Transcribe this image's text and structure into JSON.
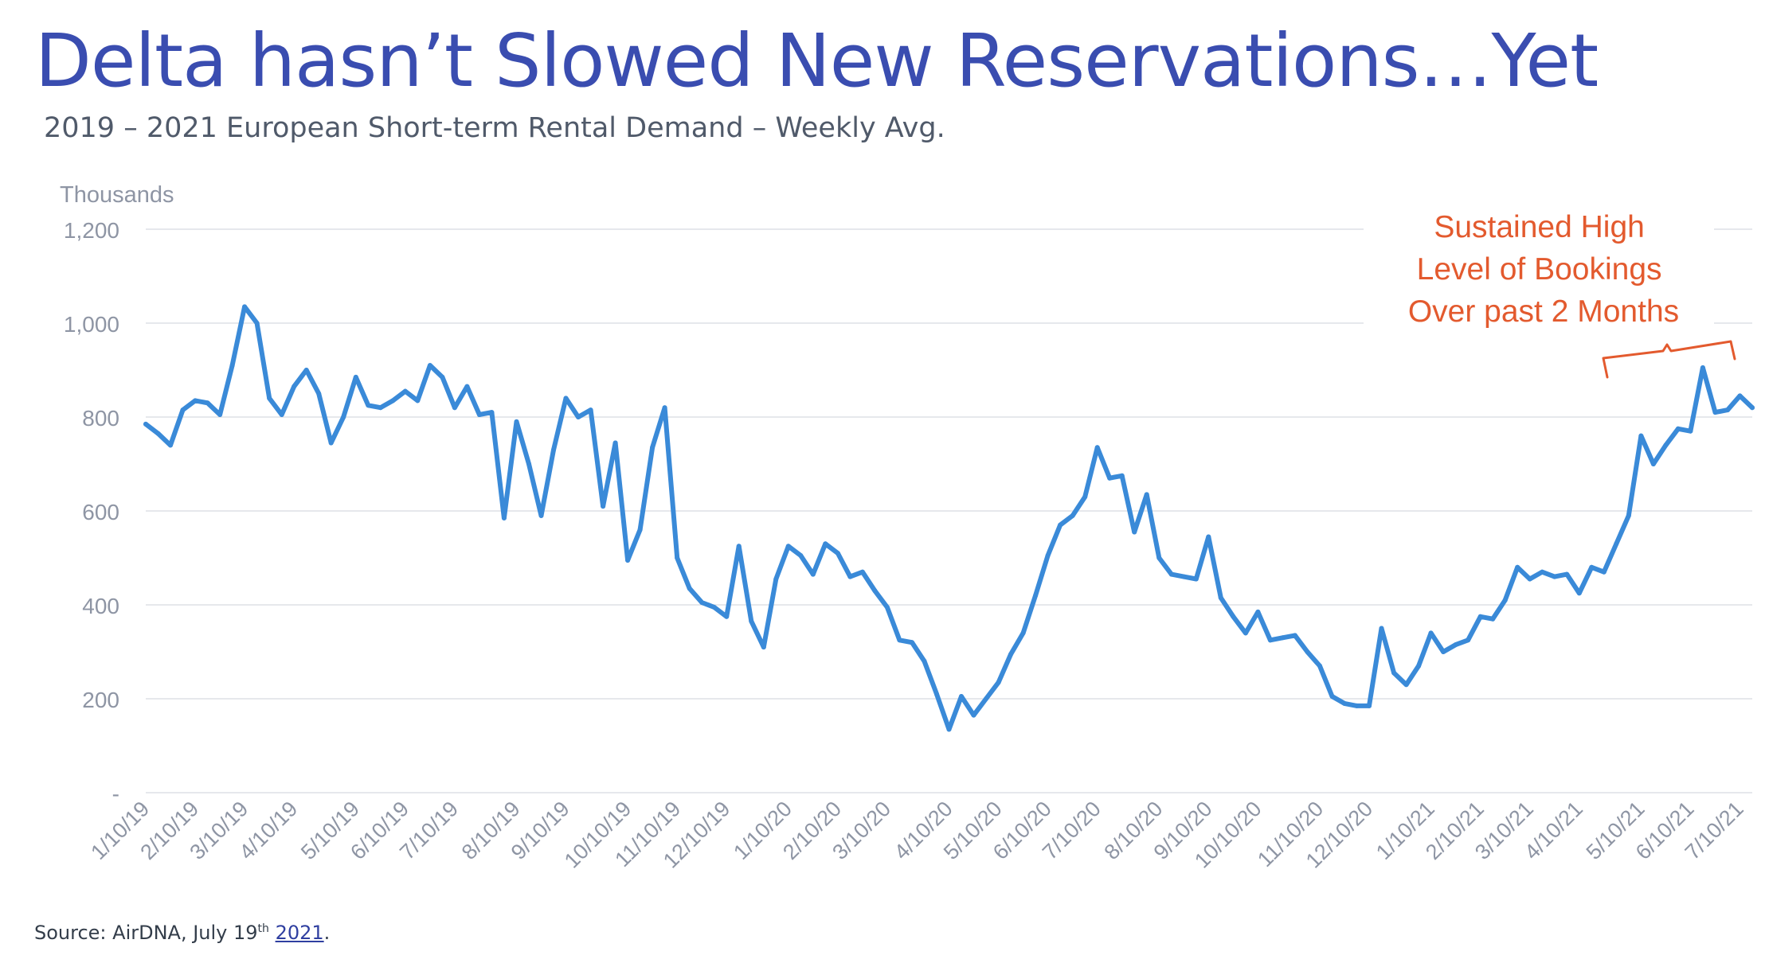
{
  "title": "Delta hasn’t Slowed New Reservations…Yet",
  "subtitle": "2019 – 2021 European Short-term Rental Demand – Weekly Avg.",
  "source": {
    "prefix": "Source: AirDNA, July 19",
    "sup": "th",
    "year": "2021",
    "suffix": "."
  },
  "colors": {
    "title": "#3a4db0",
    "line": "#3a8ad8",
    "annotation": "#e35a2e",
    "axis_text": "#8e95a4",
    "grid": "#e6e8ec"
  },
  "chart_data": {
    "type": "line",
    "title": "2019 – 2021 European Short-term Rental Demand – Weekly Avg.",
    "ylabel": "Thousands",
    "xlabel": "",
    "ylim": [
      0,
      1200
    ],
    "yticks": [
      {
        "value": 0,
        "label": "-"
      },
      {
        "value": 200,
        "label": "200"
      },
      {
        "value": 400,
        "label": "400"
      },
      {
        "value": 600,
        "label": "600"
      },
      {
        "value": 800,
        "label": "800"
      },
      {
        "value": 1000,
        "label": "1,000"
      },
      {
        "value": 1200,
        "label": "1,200"
      }
    ],
    "grid": true,
    "x_start": "1/10/19",
    "x_step_days": 7,
    "xticks": [
      {
        "index": 0,
        "label": "1/10/19"
      },
      {
        "index": 4,
        "label": "2/10/19"
      },
      {
        "index": 8,
        "label": "3/10/19"
      },
      {
        "index": 12,
        "label": "4/10/19"
      },
      {
        "index": 17,
        "label": "5/10/19"
      },
      {
        "index": 21,
        "label": "6/10/19"
      },
      {
        "index": 25,
        "label": "7/10/19"
      },
      {
        "index": 30,
        "label": "8/10/19"
      },
      {
        "index": 34,
        "label": "9/10/19"
      },
      {
        "index": 39,
        "label": "10/10/19"
      },
      {
        "index": 43,
        "label": "11/10/19"
      },
      {
        "index": 47,
        "label": "12/10/19"
      },
      {
        "index": 52,
        "label": "1/10/20"
      },
      {
        "index": 56,
        "label": "2/10/20"
      },
      {
        "index": 60,
        "label": "3/10/20"
      },
      {
        "index": 65,
        "label": "4/10/20"
      },
      {
        "index": 69,
        "label": "5/10/20"
      },
      {
        "index": 73,
        "label": "6/10/20"
      },
      {
        "index": 77,
        "label": "7/10/20"
      },
      {
        "index": 82,
        "label": "8/10/20"
      },
      {
        "index": 86,
        "label": "9/10/20"
      },
      {
        "index": 90,
        "label": "10/10/20"
      },
      {
        "index": 95,
        "label": "11/10/20"
      },
      {
        "index": 99,
        "label": "12/10/20"
      },
      {
        "index": 104,
        "label": "1/10/21"
      },
      {
        "index": 108,
        "label": "2/10/21"
      },
      {
        "index": 112,
        "label": "3/10/21"
      },
      {
        "index": 116,
        "label": "4/10/21"
      },
      {
        "index": 121,
        "label": "5/10/21"
      },
      {
        "index": 125,
        "label": "6/10/21"
      },
      {
        "index": 129,
        "label": "7/10/21"
      }
    ],
    "series": [
      {
        "values": [
          785,
          765,
          740,
          815,
          835,
          830,
          805,
          910,
          1035,
          1000,
          840,
          805,
          865,
          900,
          850,
          745,
          800,
          885,
          825,
          820,
          835,
          855,
          835,
          910,
          885,
          820,
          865,
          805,
          810,
          585,
          790,
          700,
          590,
          730,
          840,
          800,
          815,
          610,
          745,
          495,
          560,
          735,
          820,
          500,
          435,
          405,
          395,
          375,
          525,
          365,
          310,
          455,
          525,
          505,
          465,
          530,
          510,
          460,
          470,
          430,
          395,
          325,
          320,
          280,
          210,
          135,
          205,
          165,
          200,
          235,
          295,
          340,
          420,
          505,
          570,
          590,
          630,
          735,
          670,
          675,
          555,
          635,
          500,
          465,
          460,
          455,
          545,
          415,
          375,
          340,
          385,
          325,
          330,
          335,
          300,
          270,
          205,
          190,
          185,
          185,
          350,
          255,
          230,
          270,
          340,
          300,
          315,
          325,
          375,
          370,
          410,
          480,
          455,
          470,
          460,
          465,
          425,
          480,
          470,
          530,
          590,
          760,
          700,
          740,
          775,
          770,
          905,
          810,
          815,
          845,
          820
        ]
      }
    ],
    "annotations": [
      {
        "lines": [
          "Sustained High",
          "Level of Bookings",
          "Over past 2 Months"
        ],
        "bracket_from": "5/10/21",
        "bracket_to": "7/10/21"
      }
    ]
  }
}
